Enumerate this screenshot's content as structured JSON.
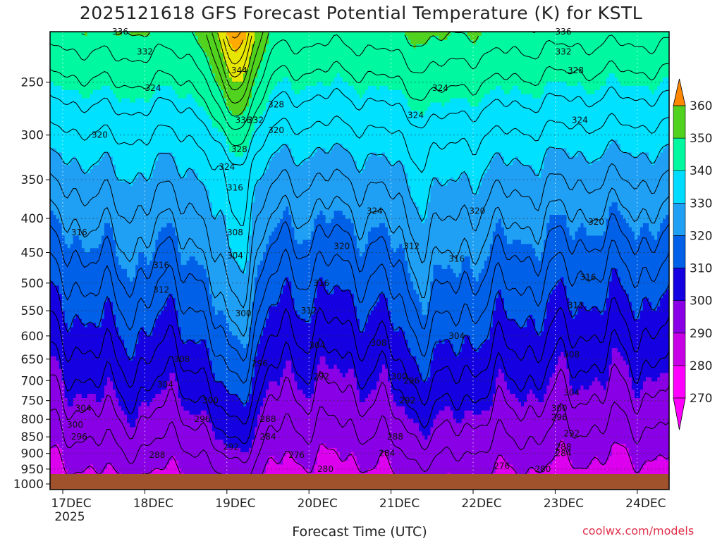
{
  "title": "2025121618 GFS Forecast Potential Temperature (K) for KSTL",
  "credit": "coolwx.com/models",
  "chart_data": {
    "type": "heatmap",
    "title": "2025121618 GFS Forecast Potential Temperature (K) for KSTL",
    "xlabel": "Forecast Time (UTC)",
    "ylabel": "",
    "x_ticks": [
      "17DEC",
      "18DEC",
      "19DEC",
      "20DEC",
      "21DEC",
      "22DEC",
      "23DEC",
      "24DEC"
    ],
    "x_tick_year": "2025",
    "y_ticks": [
      250,
      300,
      350,
      400,
      450,
      500,
      550,
      600,
      650,
      700,
      750,
      800,
      850,
      900,
      950,
      1000
    ],
    "ylim": [
      1000,
      200
    ],
    "colorbar": {
      "levels": [
        270,
        280,
        290,
        300,
        310,
        320,
        330,
        340,
        350,
        360
      ],
      "colors": [
        "#ff00ff",
        "#c800e6",
        "#8c00e6",
        "#1e00e6",
        "#0050e6",
        "#1e96f0",
        "#00dcff",
        "#00fa9a",
        "#50d21e",
        "#e6e600",
        "#ffaa00",
        "#ff7800"
      ]
    },
    "ground_color": "#a0522d",
    "contour_labels": [
      {
        "t": 0.7,
        "p": 210,
        "v": "336"
      },
      {
        "t": 1.0,
        "p": 225,
        "v": "332"
      },
      {
        "t": 1.1,
        "p": 255,
        "v": "324"
      },
      {
        "t": 0.45,
        "p": 300,
        "v": "320"
      },
      {
        "t": 0.2,
        "p": 420,
        "v": "316"
      },
      {
        "t": 1.2,
        "p": 470,
        "v": "316"
      },
      {
        "t": 1.2,
        "p": 512,
        "v": "312"
      },
      {
        "t": 1.45,
        "p": 650,
        "v": "308"
      },
      {
        "t": 1.25,
        "p": 710,
        "v": "304"
      },
      {
        "t": 0.25,
        "p": 770,
        "v": "304"
      },
      {
        "t": 0.15,
        "p": 815,
        "v": "300"
      },
      {
        "t": 0.2,
        "p": 850,
        "v": "296"
      },
      {
        "t": 1.8,
        "p": 750,
        "v": "300"
      },
      {
        "t": 1.7,
        "p": 800,
        "v": "296"
      },
      {
        "t": 2.05,
        "p": 880,
        "v": "292"
      },
      {
        "t": 1.15,
        "p": 905,
        "v": "288"
      },
      {
        "t": 2.15,
        "p": 240,
        "v": "344"
      },
      {
        "t": 2.2,
        "p": 285,
        "v": "336"
      },
      {
        "t": 2.35,
        "p": 285,
        "v": "332"
      },
      {
        "t": 2.6,
        "p": 295,
        "v": "320"
      },
      {
        "t": 2.15,
        "p": 315,
        "v": "328"
      },
      {
        "t": 2.0,
        "p": 335,
        "v": "324"
      },
      {
        "t": 2.1,
        "p": 360,
        "v": "316"
      },
      {
        "t": 2.1,
        "p": 420,
        "v": "308"
      },
      {
        "t": 2.1,
        "p": 455,
        "v": "304"
      },
      {
        "t": 2.2,
        "p": 555,
        "v": "300"
      },
      {
        "t": 2.4,
        "p": 660,
        "v": "296"
      },
      {
        "t": 2.5,
        "p": 800,
        "v": "288"
      },
      {
        "t": 2.5,
        "p": 850,
        "v": "284"
      },
      {
        "t": 2.85,
        "p": 905,
        "v": "276"
      },
      {
        "t": 3.2,
        "p": 950,
        "v": "280"
      },
      {
        "t": 2.6,
        "p": 270,
        "v": "328"
      },
      {
        "t": 3.0,
        "p": 550,
        "v": "312"
      },
      {
        "t": 3.15,
        "p": 500,
        "v": "316"
      },
      {
        "t": 3.4,
        "p": 440,
        "v": "320"
      },
      {
        "t": 3.8,
        "p": 390,
        "v": "324"
      },
      {
        "t": 3.1,
        "p": 620,
        "v": "304"
      },
      {
        "t": 3.15,
        "p": 690,
        "v": "292"
      },
      {
        "t": 3.85,
        "p": 615,
        "v": "308"
      },
      {
        "t": 4.3,
        "p": 280,
        "v": "324"
      },
      {
        "t": 4.25,
        "p": 440,
        "v": "312"
      },
      {
        "t": 4.1,
        "p": 690,
        "v": "300"
      },
      {
        "t": 4.25,
        "p": 700,
        "v": "296"
      },
      {
        "t": 4.2,
        "p": 750,
        "v": "292"
      },
      {
        "t": 4.05,
        "p": 850,
        "v": "288"
      },
      {
        "t": 3.95,
        "p": 900,
        "v": "284"
      },
      {
        "t": 4.6,
        "p": 255,
        "v": "324"
      },
      {
        "t": 4.8,
        "p": 460,
        "v": "316"
      },
      {
        "t": 4.8,
        "p": 600,
        "v": "304"
      },
      {
        "t": 5.05,
        "p": 390,
        "v": "320"
      },
      {
        "t": 5.35,
        "p": 940,
        "v": "276"
      },
      {
        "t": 5.85,
        "p": 950,
        "v": "280"
      },
      {
        "t": 6.1,
        "p": 210,
        "v": "336"
      },
      {
        "t": 6.1,
        "p": 225,
        "v": "332"
      },
      {
        "t": 6.25,
        "p": 240,
        "v": "328"
      },
      {
        "t": 6.3,
        "p": 285,
        "v": "324"
      },
      {
        "t": 6.5,
        "p": 405,
        "v": "320"
      },
      {
        "t": 6.4,
        "p": 490,
        "v": "316"
      },
      {
        "t": 6.25,
        "p": 540,
        "v": "312"
      },
      {
        "t": 6.2,
        "p": 640,
        "v": "308"
      },
      {
        "t": 6.2,
        "p": 730,
        "v": "304"
      },
      {
        "t": 6.05,
        "p": 770,
        "v": "300"
      },
      {
        "t": 6.05,
        "p": 795,
        "v": "296"
      },
      {
        "t": 6.2,
        "p": 840,
        "v": "292"
      },
      {
        "t": 6.1,
        "p": 880,
        "v": "288"
      },
      {
        "t": 6.1,
        "p": 900,
        "v": "284"
      }
    ]
  }
}
